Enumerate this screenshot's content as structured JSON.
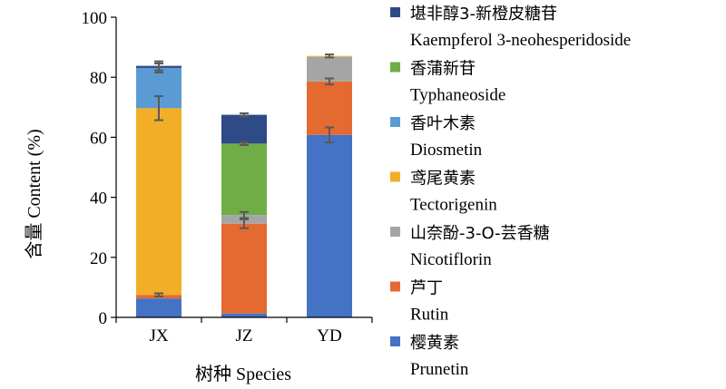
{
  "chart_data": {
    "type": "bar",
    "stacked": true,
    "ylabel": "含量 Content (%)",
    "xlabel": "树种 Species",
    "ylim": [
      0,
      100
    ],
    "yticks": [
      0,
      20,
      40,
      60,
      80,
      100
    ],
    "categories": [
      "JX",
      "JZ",
      "YD"
    ],
    "series": [
      {
        "key": "prunetin",
        "name_cn": "樱黄素",
        "name_en": "Prunetin",
        "color": "#4472c4",
        "values": [
          6.3,
          1.3,
          60.8
        ],
        "errors": [
          null,
          null,
          2.5
        ]
      },
      {
        "key": "rutin",
        "name_cn": "芦丁",
        "name_en": "Rutin",
        "color": "#e46a32",
        "values": [
          1.2,
          29.9,
          17.8
        ],
        "errors": [
          0.5,
          1.5,
          1.0
        ]
      },
      {
        "key": "nicotiflorin",
        "name_cn": "山奈酚-3-O-芸香糖",
        "name_en": "Nicotiflorin",
        "color": "#a5a5a5",
        "values": [
          0,
          2.9,
          8.2
        ],
        "errors": [
          null,
          1.0,
          null
        ]
      },
      {
        "key": "tectorigenin",
        "name_cn": "鸢尾黄素",
        "name_en": "Tectorigenin",
        "color": "#f2ae27",
        "values": [
          62.2,
          0,
          0.3
        ],
        "errors": [
          4.0,
          null,
          null
        ]
      },
      {
        "key": "diosmetin",
        "name_cn": "香叶木素",
        "name_en": "Diosmetin",
        "color": "#5b9bd5",
        "values": [
          13.4,
          0,
          0
        ],
        "errors": [
          1.5,
          null,
          null
        ]
      },
      {
        "key": "typhaneoside",
        "name_cn": "香蒲新苷",
        "name_en": "Typhaneoside",
        "color": "#70ad47",
        "values": [
          0,
          23.8,
          0
        ],
        "errors": [
          null,
          0.5,
          null
        ]
      },
      {
        "key": "kaempferol",
        "name_cn": "堪非醇3-新橙皮糖苷",
        "name_en": "Kaempferol 3-neohesperidoside",
        "color": "#2e4a87",
        "values": [
          0.7,
          9.6,
          0
        ],
        "errors": [
          1.5,
          0.5,
          0.5
        ]
      }
    ],
    "legend_order": [
      "kaempferol",
      "typhaneoside",
      "diosmetin",
      "tectorigenin",
      "nicotiflorin",
      "rutin",
      "prunetin"
    ],
    "legend_position": "right"
  }
}
